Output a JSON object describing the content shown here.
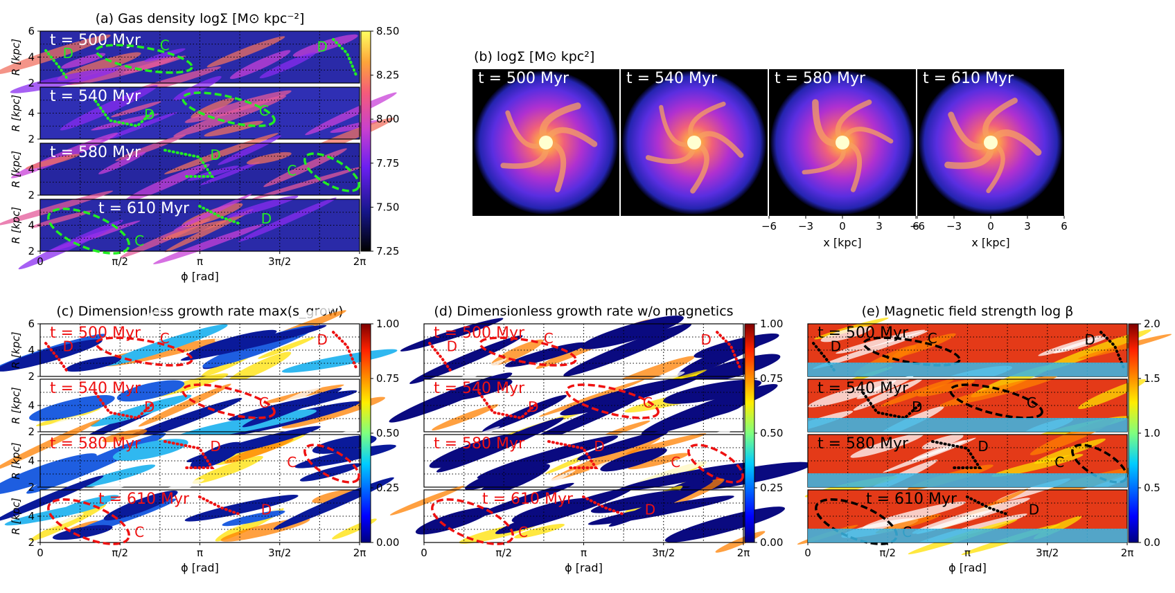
{
  "chart_data": [
    {
      "id": "a",
      "type": "heatmap",
      "title": "(a) Gas density logΣ [M⊙ kpc⁻²]",
      "xlabel": "ϕ [rad]",
      "ylabel": "R [kpc]",
      "xticks": [
        "0",
        "π/2",
        "π",
        "3π/2",
        "2π"
      ],
      "yticks": [
        "2",
        "4",
        "6"
      ],
      "xlim": [
        0,
        6.283
      ],
      "ylim": [
        2,
        6
      ],
      "colormap": "gnuplot2",
      "colorbar": {
        "min": 7.25,
        "max": 8.5,
        "ticks": [
          "8.50",
          "8.25",
          "8.00",
          "7.75",
          "7.50",
          "7.25"
        ]
      },
      "panels": [
        {
          "time": "t = 500 Myr",
          "markers": [
            {
              "label": "D",
              "phi": 0.55,
              "R": 4.3
            },
            {
              "label": "C",
              "phi": 2.45,
              "R": 4.9
            },
            {
              "label": "D",
              "phi": 5.55,
              "R": 4.8
            }
          ]
        },
        {
          "time": "t = 540 Myr",
          "markers": [
            {
              "label": "D",
              "phi": 2.15,
              "R": 3.9
            },
            {
              "label": "C",
              "phi": 4.4,
              "R": 4.2
            }
          ]
        },
        {
          "time": "t = 580 Myr",
          "markers": [
            {
              "label": "D",
              "phi": 3.45,
              "R": 5.1
            },
            {
              "label": "C",
              "phi": 4.95,
              "R": 3.9
            }
          ]
        },
        {
          "time": "t = 610 Myr",
          "markers": [
            {
              "label": "D",
              "phi": 4.45,
              "R": 4.5
            },
            {
              "label": "C",
              "phi": 1.95,
              "R": 2.8
            }
          ]
        }
      ],
      "annotation_color": "#22ee22"
    },
    {
      "id": "b",
      "type": "heatmap",
      "title": "(b) logΣ  [M⊙ kpc²]",
      "xlabel": "x [kpc]",
      "xticks": [
        "−6",
        "−3",
        "0",
        "3",
        "6"
      ],
      "xlim": [
        -6,
        6
      ],
      "colormap": "gnuplot2",
      "panels": [
        {
          "time": "t = 500 Myr"
        },
        {
          "time": "t = 540 Myr"
        },
        {
          "time": "t = 580 Myr"
        },
        {
          "time": "t = 610 Myr"
        }
      ]
    },
    {
      "id": "c",
      "type": "heatmap",
      "title": "(c) Dimensionless growth rate  max(s_grow)",
      "xlabel": "ϕ [rad]",
      "ylabel": "R [kpc]",
      "xticks": [
        "0",
        "π/2",
        "π",
        "3π/2",
        "2π"
      ],
      "yticks": [
        "2",
        "4",
        "6"
      ],
      "colormap": "jet",
      "colorbar": {
        "min": 0,
        "max": 1,
        "ticks": [
          "1.00",
          "0.75",
          "0.50",
          "0.25",
          "0.00"
        ]
      },
      "panels": [
        {
          "time": "t = 500 Myr"
        },
        {
          "time": "t = 540 Myr"
        },
        {
          "time": "t = 580 Myr"
        },
        {
          "time": "t = 610 Myr"
        }
      ],
      "annotation_color": "#ee1111"
    },
    {
      "id": "d",
      "type": "heatmap",
      "title": "(d) Dimensionless growth rate w/o magnetics",
      "xlabel": "ϕ [rad]",
      "xticks": [
        "0",
        "π/2",
        "π",
        "3π/2",
        "2π"
      ],
      "colormap": "jet",
      "colorbar": {
        "min": 0,
        "max": 1,
        "ticks": [
          "1.00",
          "0.75",
          "0.50",
          "0.25",
          "0.00"
        ]
      },
      "panels": [
        {
          "time": "t = 500 Myr"
        },
        {
          "time": "t = 540 Myr"
        },
        {
          "time": "t = 580 Myr"
        },
        {
          "time": "t = 610 Myr"
        }
      ],
      "annotation_color": "#ee1111"
    },
    {
      "id": "e",
      "type": "heatmap",
      "title": "(e) Magnetic field strength log β",
      "xlabel": "ϕ [rad]",
      "xticks": [
        "0",
        "π/2",
        "π",
        "3π/2",
        "2π"
      ],
      "colormap": "jet",
      "colorbar": {
        "min": 0,
        "max": 2,
        "ticks": [
          "2.0",
          "1.5",
          "1.0",
          "0.5",
          "0.0"
        ]
      },
      "panels": [
        {
          "time": "t = 500 Myr"
        },
        {
          "time": "t = 540 Myr"
        },
        {
          "time": "t = 580 Myr"
        },
        {
          "time": "t = 610 Myr"
        }
      ],
      "annotation_color": "#000000"
    }
  ],
  "labels": {
    "C": "C",
    "D": "D"
  }
}
